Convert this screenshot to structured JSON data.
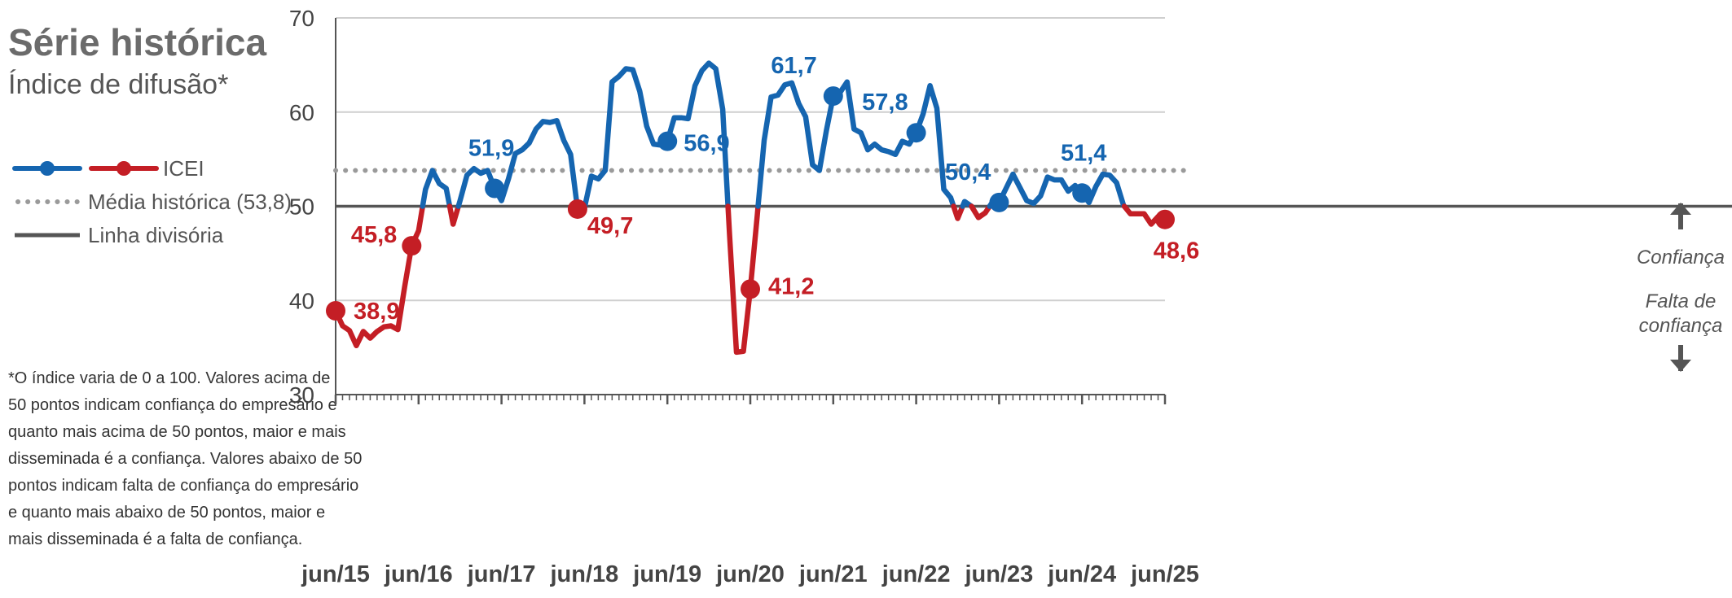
{
  "header": {
    "title": "Série histórica",
    "subtitle": "Índice de difusão*"
  },
  "legend": {
    "series_label": "ICEI",
    "mean_label": "Média histórica (53,8)",
    "divider_label": "Linha divisória"
  },
  "note": {
    "lines": [
      "*O índice varia de 0 a 100. Valores acima de",
      "50 pontos indicam confiança do empresário e",
      "quanto mais acima de 50 pontos, maior e mais",
      "disseminada é a confiança. Valores abaixo de 50",
      "pontos indicam falta de confiança do empresário",
      "e quanto mais abaixo de 50 pontos, maior e",
      "mais disseminada é a falta de confiança."
    ]
  },
  "side_labels": {
    "confidence": "Confiança",
    "lack_line1": "Falta de",
    "lack_line2": "confiança"
  },
  "colors": {
    "above": "#1565b0",
    "below": "#c41e25",
    "mean": "#9a9a9a",
    "divider": "#555555",
    "grid": "#cfcfcf",
    "arrow": "#555555"
  },
  "chart_data": {
    "type": "line",
    "x_ticks": [
      "jun/15",
      "jun/16",
      "jun/17",
      "jun/18",
      "jun/19",
      "jun/20",
      "jun/21",
      "jun/22",
      "jun/23",
      "jun/24",
      "jun/25"
    ],
    "y_ticks": [
      30,
      40,
      50,
      60,
      70
    ],
    "ylim": [
      30,
      70
    ],
    "xlim": [
      "jun/15",
      "jun/25"
    ],
    "historical_mean": 53.8,
    "divider": 50,
    "series": [
      {
        "name": "ICEI",
        "x": [
          "jun/15",
          "jul/15",
          "ago/15",
          "set/15",
          "out/15",
          "nov/15",
          "dez/15",
          "jan/16",
          "fev/16",
          "mar/16",
          "abr/16",
          "mai/16",
          "jun/16",
          "jul/16",
          "ago/16",
          "set/16",
          "out/16",
          "nov/16",
          "dez/16",
          "jan/17",
          "fev/17",
          "mar/17",
          "abr/17",
          "mai/17",
          "jun/17",
          "jul/17",
          "ago/17",
          "set/17",
          "out/17",
          "nov/17",
          "dez/17",
          "jan/18",
          "fev/18",
          "mar/18",
          "abr/18",
          "mai/18",
          "jun/18",
          "jul/18",
          "ago/18",
          "set/18",
          "out/18",
          "nov/18",
          "dez/18",
          "jan/19",
          "fev/19",
          "mar/19",
          "abr/19",
          "mai/19",
          "jun/19",
          "jul/19",
          "ago/19",
          "set/19",
          "out/19",
          "nov/19",
          "dez/19",
          "jan/20",
          "fev/20",
          "mar/20",
          "abr/20",
          "mai/20",
          "jun/20",
          "jul/20",
          "ago/20",
          "set/20",
          "out/20",
          "nov/20",
          "dez/20",
          "jan/21",
          "fev/21",
          "mar/21",
          "abr/21",
          "mai/21",
          "jun/21",
          "jul/21",
          "ago/21",
          "set/21",
          "out/21",
          "nov/21",
          "dez/21",
          "jan/22",
          "fev/22",
          "mar/22",
          "abr/22",
          "mai/22",
          "jun/22",
          "jul/22",
          "ago/22",
          "set/22",
          "out/22",
          "nov/22",
          "dez/22",
          "jan/23",
          "fev/23",
          "mar/23",
          "abr/23",
          "mai/23",
          "jun/23",
          "jul/23",
          "ago/23",
          "set/23",
          "out/23",
          "nov/23",
          "dez/23",
          "jan/24",
          "fev/24",
          "mar/24",
          "abr/24",
          "mai/24",
          "jun/24",
          "jul/24",
          "ago/24",
          "set/24",
          "out/24",
          "nov/24",
          "dez/24",
          "jan/25",
          "fev/25",
          "mar/25",
          "abr/25",
          "mai/25",
          "jun/25"
        ],
        "values": [
          38.9,
          37.3,
          36.8,
          35.2,
          36.7,
          36.0,
          36.7,
          37.2,
          37.3,
          36.9,
          41.5,
          45.8,
          47.4,
          51.8,
          53.8,
          52.4,
          51.9,
          48.1,
          50.6,
          53.3,
          54.0,
          53.5,
          53.8,
          51.9,
          50.6,
          52.9,
          55.6,
          56.0,
          56.7,
          58.2,
          59.0,
          58.9,
          59.1,
          57.0,
          55.5,
          49.7,
          49.8,
          53.2,
          52.9,
          53.8,
          63.2,
          63.8,
          64.6,
          64.5,
          62.2,
          58.5,
          56.6,
          56.5,
          56.9,
          59.4,
          59.4,
          59.3,
          62.8,
          64.4,
          65.2,
          64.6,
          60.3,
          47.0,
          34.5,
          34.6,
          41.2,
          49.0,
          57.0,
          61.6,
          61.8,
          62.9,
          63.1,
          60.9,
          59.5,
          54.4,
          53.8,
          58.0,
          61.7,
          62.1,
          63.2,
          58.2,
          57.8,
          56.0,
          56.6,
          56.0,
          55.8,
          55.5,
          56.9,
          56.6,
          57.8,
          59.8,
          62.8,
          60.4,
          51.8,
          50.9,
          48.7,
          50.5,
          50.0,
          48.8,
          49.3,
          50.4,
          50.4,
          51.9,
          53.4,
          52.0,
          50.6,
          50.3,
          51.1,
          53.1,
          52.8,
          52.8,
          51.6,
          52.2,
          51.4,
          50.4,
          52.1,
          53.4,
          53.3,
          52.5,
          50.1,
          49.2,
          49.2,
          49.2,
          48.1,
          48.9,
          48.6
        ]
      }
    ],
    "labels": [
      {
        "x": "jun/15",
        "value": "38,9"
      },
      {
        "x": "mai/16",
        "value": "45,8"
      },
      {
        "x": "mai/17",
        "value": "51,9"
      },
      {
        "x": "mai/18",
        "value": "49,7"
      },
      {
        "x": "jun/19",
        "value": "56,9"
      },
      {
        "x": "jun/20",
        "value": "41,2"
      },
      {
        "x": "jun/21",
        "value": "61,7"
      },
      {
        "x": "jun/22",
        "value": "57,8"
      },
      {
        "x": "jun/23",
        "value": "50,4"
      },
      {
        "x": "jun/24",
        "value": "51,4"
      },
      {
        "x": "jun/25",
        "value": "48,6"
      }
    ]
  }
}
